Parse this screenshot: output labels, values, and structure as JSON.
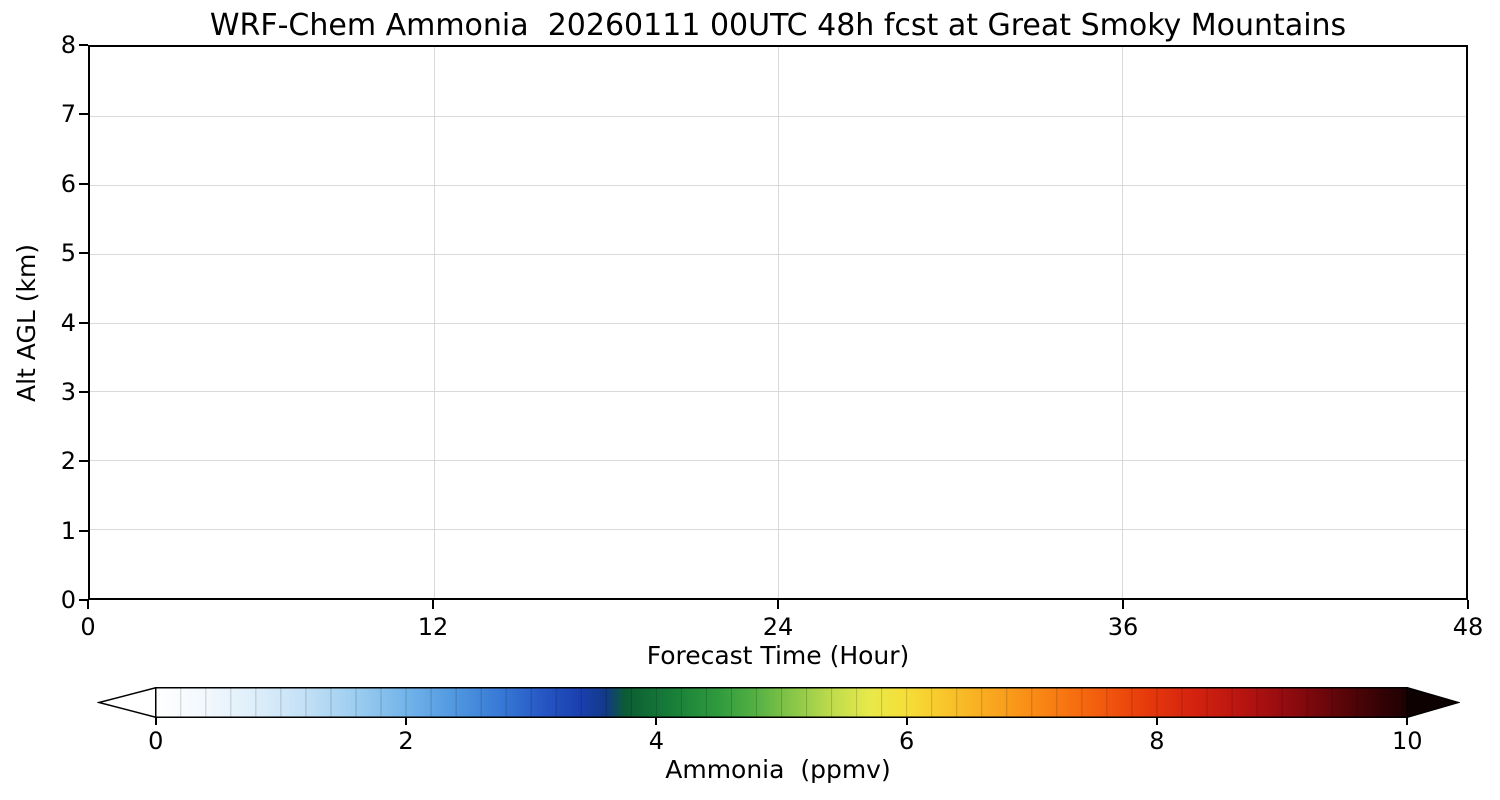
{
  "chart_data": {
    "type": "heatmap",
    "title": "WRF-Chem Ammonia  20260111 00UTC 48h fcst at Great Smoky Mountains",
    "xlabel": "Forecast Time (Hour)",
    "ylabel": "Alt AGL (km)",
    "xlim": [
      0,
      48
    ],
    "ylim": [
      0,
      8
    ],
    "xticks": [
      0,
      12,
      24,
      36,
      48
    ],
    "yticks": [
      0,
      1,
      2,
      3,
      4,
      5,
      6,
      7,
      8
    ],
    "grid": true,
    "grid_color": "#d9d9d9",
    "values": [],
    "note": "time-height cross-section plot area is blank/white; no ammonia contour values are visible in the shown forecast window",
    "colorbar": {
      "label": "Ammonia  (ppmv)",
      "ticks": [
        0,
        2,
        4,
        6,
        8,
        10
      ],
      "range": [
        0,
        10
      ],
      "extend": "both",
      "under_color": "#ffffff",
      "over_color": "#0d0102",
      "segments": 50,
      "gradient": [
        [
          0,
          "#ffffff"
        ],
        [
          4,
          "#f2f8fd"
        ],
        [
          8,
          "#ddeefa"
        ],
        [
          12,
          "#c2e0f6"
        ],
        [
          16,
          "#9ccdf0"
        ],
        [
          20,
          "#72b4ea"
        ],
        [
          24,
          "#4f97e0"
        ],
        [
          28,
          "#3575d4"
        ],
        [
          31,
          "#2656c4"
        ],
        [
          34,
          "#1a3fae"
        ],
        [
          36,
          "#123a86"
        ],
        [
          37.5,
          "#0c5c33"
        ],
        [
          41,
          "#167c38"
        ],
        [
          45,
          "#2f9b3e"
        ],
        [
          48,
          "#55b143"
        ],
        [
          51,
          "#8ac748"
        ],
        [
          54,
          "#bedb4c"
        ],
        [
          57,
          "#e8e94a"
        ],
        [
          60,
          "#f6de37"
        ],
        [
          63,
          "#f8c62b"
        ],
        [
          67,
          "#f9a51e"
        ],
        [
          71,
          "#f98414"
        ],
        [
          75,
          "#f4600e"
        ],
        [
          79,
          "#e73b0c"
        ],
        [
          83,
          "#d4220f"
        ],
        [
          87,
          "#b61411"
        ],
        [
          90,
          "#960c10"
        ],
        [
          93,
          "#72070b"
        ],
        [
          96,
          "#4b0407"
        ],
        [
          100,
          "#1c0102"
        ]
      ]
    }
  }
}
